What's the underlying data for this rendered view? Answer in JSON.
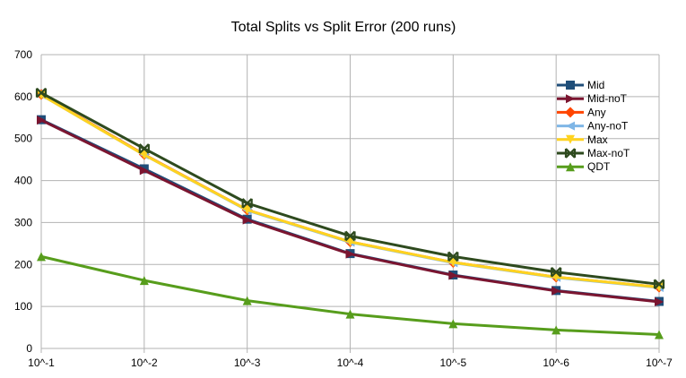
{
  "chart_data": {
    "type": "line",
    "title": "Total Splits vs Split Error (200 runs)",
    "xlabel": "",
    "ylabel": "",
    "categories": [
      "10^-1",
      "10^-2",
      "10^-3",
      "10^-4",
      "10^-5",
      "10^-6",
      "10^-7"
    ],
    "ylim": [
      0,
      700
    ],
    "yticks": [
      0,
      100,
      200,
      300,
      400,
      500,
      600,
      700
    ],
    "grid": true,
    "legend_position": "top-right",
    "series": [
      {
        "name": "Mid",
        "color": "#1f4e79",
        "marker": "square",
        "values": [
          545,
          428,
          308,
          226,
          175,
          138,
          112
        ]
      },
      {
        "name": "Mid-noT",
        "color": "#7b1530",
        "marker": "triangle-right",
        "values": [
          544,
          424,
          306,
          225,
          174,
          137,
          111
        ]
      },
      {
        "name": "Any",
        "color": "#ff4500",
        "marker": "diamond",
        "values": [
          605,
          462,
          330,
          254,
          205,
          170,
          146
        ]
      },
      {
        "name": "Any-noT",
        "color": "#7fb6e6",
        "marker": "triangle-left",
        "values": [
          604,
          461,
          329,
          253,
          204,
          169,
          145
        ]
      },
      {
        "name": "Max",
        "color": "#ffd320",
        "marker": "triangle-down",
        "values": [
          604,
          461,
          330,
          254,
          205,
          170,
          146
        ]
      },
      {
        "name": "Max-noT",
        "color": "#2e4a1e",
        "marker": "x-cross",
        "values": [
          609,
          476,
          346,
          268,
          219,
          182,
          153
        ]
      },
      {
        "name": "QDT",
        "color": "#579d1c",
        "marker": "triangle-up",
        "values": [
          219,
          162,
          114,
          82,
          59,
          44,
          33
        ]
      }
    ]
  }
}
